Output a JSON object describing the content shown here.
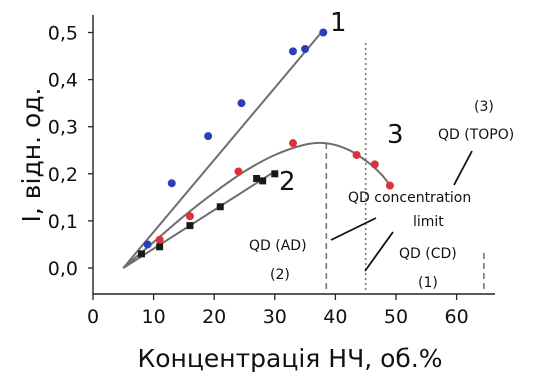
{
  "chart_data": {
    "type": "scatter",
    "xlabel": "Концентрація НЧ, об.%",
    "ylabel": "I, відн. од.",
    "xlim": [
      0,
      65
    ],
    "ylim": [
      -0.02,
      0.56
    ],
    "xticks": [
      "0",
      "10",
      "20",
      "30",
      "40",
      "50",
      "60"
    ],
    "yticks": [
      "0,0",
      "0,1",
      "0,2",
      "0,3",
      "0,4",
      "0,5"
    ],
    "colors": {
      "series1": "#2d3fb8",
      "series2": "#1a1a1a",
      "series3": "#e0303a"
    },
    "series": [
      {
        "name": "1",
        "color": "#2d3fb8",
        "points": [
          [
            9,
            0.05
          ],
          [
            13,
            0.18
          ],
          [
            19,
            0.28
          ],
          [
            24.5,
            0.35
          ],
          [
            33,
            0.46
          ],
          [
            35,
            0.465
          ],
          [
            38,
            0.5
          ]
        ],
        "fit": [
          [
            5,
            0
          ],
          [
            38,
            0.505
          ]
        ]
      },
      {
        "name": "2",
        "color": "#1a1a1a",
        "points": [
          [
            8,
            0.03
          ],
          [
            11,
            0.045
          ],
          [
            16,
            0.09
          ],
          [
            21,
            0.13
          ],
          [
            27,
            0.19
          ],
          [
            28,
            0.185
          ],
          [
            30,
            0.2
          ]
        ],
        "fit": [
          [
            5,
            0
          ],
          [
            30,
            0.205
          ]
        ]
      },
      {
        "name": "3",
        "color": "#e0303a",
        "points": [
          [
            11,
            0.06
          ],
          [
            16,
            0.11
          ],
          [
            24,
            0.205
          ],
          [
            33,
            0.265
          ],
          [
            43.5,
            0.24
          ],
          [
            46.5,
            0.22
          ],
          [
            49,
            0.175
          ]
        ],
        "fit": [
          [
            5,
            0
          ],
          [
            10,
            0.055
          ],
          [
            15,
            0.11
          ],
          [
            20,
            0.16
          ],
          [
            25,
            0.205
          ],
          [
            30,
            0.24
          ],
          [
            35,
            0.262
          ],
          [
            38.5,
            0.265
          ],
          [
            42,
            0.252
          ],
          [
            45,
            0.228
          ],
          [
            47.5,
            0.2
          ],
          [
            49,
            0.176
          ]
        ]
      }
    ],
    "vlines": [
      {
        "x": 38.5,
        "style": "dashed",
        "label": "(2)"
      },
      {
        "x": 45,
        "style": "dotted",
        "label": "(1)"
      },
      {
        "x": 64.5,
        "style": "dashed",
        "label": "(3)"
      }
    ],
    "annotations": [
      {
        "text": "QD (AD)"
      },
      {
        "text": "(2)"
      },
      {
        "text": "QD (CD)"
      },
      {
        "text": "(1)"
      },
      {
        "text": "(3)"
      },
      {
        "text": "QD (TOPO)"
      },
      {
        "text": "QD concentration"
      },
      {
        "text": "limit"
      }
    ]
  }
}
